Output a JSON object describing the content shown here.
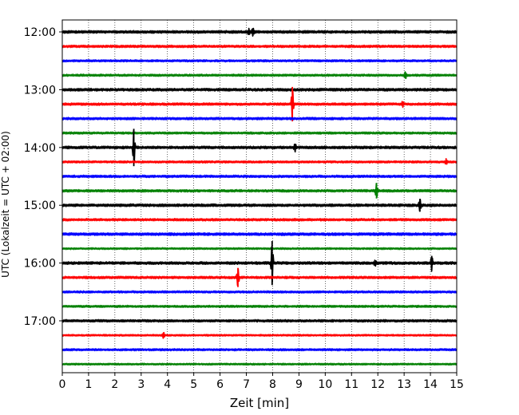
{
  "chart_data": {
    "type": "line",
    "title": "",
    "xlabel": "Zeit  [min]",
    "ylabel": "UTC (Lokalzeit = UTC + 02:00)",
    "xlim": [
      0,
      15
    ],
    "x_ticks": [
      "0",
      "1",
      "2",
      "3",
      "4",
      "5",
      "6",
      "7",
      "8",
      "9",
      "10",
      "11",
      "12",
      "13",
      "14",
      "15"
    ],
    "y_ticks": [
      "12:00",
      "13:00",
      "14:00",
      "15:00",
      "16:00",
      "17:00"
    ],
    "grid_x": true,
    "grid_style": "dotted",
    "row_interval_min": 15,
    "colors": [
      "#000000",
      "#ff0000",
      "#0000ff",
      "#008000"
    ],
    "rows": [
      {
        "time": "12:00",
        "color": "#000000",
        "amplitude": 0.28,
        "events": [
          {
            "t": 7.1,
            "amp": 0.6
          },
          {
            "t": 7.25,
            "amp": 0.8
          }
        ]
      },
      {
        "time": "12:15",
        "color": "#ff0000",
        "amplitude": 0.25,
        "events": []
      },
      {
        "time": "12:30",
        "color": "#0000ff",
        "amplitude": 0.22,
        "events": []
      },
      {
        "time": "12:45",
        "color": "#008000",
        "amplitude": 0.22,
        "events": [
          {
            "t": 13.05,
            "amp": 0.7
          }
        ]
      },
      {
        "time": "13:00",
        "color": "#000000",
        "amplitude": 0.28,
        "events": []
      },
      {
        "time": "13:15",
        "color": "#ff0000",
        "amplitude": 0.25,
        "events": [
          {
            "t": 8.75,
            "amp": 3.6
          },
          {
            "t": 12.95,
            "amp": 0.55
          }
        ]
      },
      {
        "time": "13:30",
        "color": "#0000ff",
        "amplitude": 0.25,
        "events": []
      },
      {
        "time": "13:45",
        "color": "#008000",
        "amplitude": 0.22,
        "events": []
      },
      {
        "time": "14:00",
        "color": "#000000",
        "amplitude": 0.28,
        "events": [
          {
            "t": 2.72,
            "amp": 3.9
          },
          {
            "t": 8.85,
            "amp": 0.8
          }
        ]
      },
      {
        "time": "14:15",
        "color": "#ff0000",
        "amplitude": 0.22,
        "events": [
          {
            "t": 14.6,
            "amp": 0.5
          }
        ]
      },
      {
        "time": "14:30",
        "color": "#0000ff",
        "amplitude": 0.25,
        "events": []
      },
      {
        "time": "14:45",
        "color": "#008000",
        "amplitude": 0.25,
        "events": [
          {
            "t": 11.95,
            "amp": 1.6
          }
        ]
      },
      {
        "time": "15:00",
        "color": "#000000",
        "amplitude": 0.28,
        "events": [
          {
            "t": 13.6,
            "amp": 1.35
          }
        ]
      },
      {
        "time": "15:15",
        "color": "#ff0000",
        "amplitude": 0.25,
        "events": []
      },
      {
        "time": "15:30",
        "color": "#0000ff",
        "amplitude": 0.28,
        "events": []
      },
      {
        "time": "15:45",
        "color": "#008000",
        "amplitude": 0.18,
        "events": []
      },
      {
        "time": "16:00",
        "color": "#000000",
        "amplitude": 0.28,
        "events": [
          {
            "t": 7.98,
            "amp": 4.6
          },
          {
            "t": 11.9,
            "amp": 0.6
          },
          {
            "t": 14.05,
            "amp": 1.5
          }
        ]
      },
      {
        "time": "16:15",
        "color": "#ff0000",
        "amplitude": 0.25,
        "events": [
          {
            "t": 6.68,
            "amp": 2.0
          }
        ]
      },
      {
        "time": "16:30",
        "color": "#0000ff",
        "amplitude": 0.22,
        "events": []
      },
      {
        "time": "16:45",
        "color": "#008000",
        "amplitude": 0.22,
        "events": []
      },
      {
        "time": "17:00",
        "color": "#000000",
        "amplitude": 0.25,
        "events": []
      },
      {
        "time": "17:15",
        "color": "#ff0000",
        "amplitude": 0.18,
        "events": [
          {
            "t": 3.85,
            "amp": 0.6
          }
        ]
      },
      {
        "time": "17:30",
        "color": "#0000ff",
        "amplitude": 0.22,
        "events": []
      },
      {
        "time": "17:45",
        "color": "#008000",
        "amplitude": 0.18,
        "events": []
      }
    ]
  }
}
